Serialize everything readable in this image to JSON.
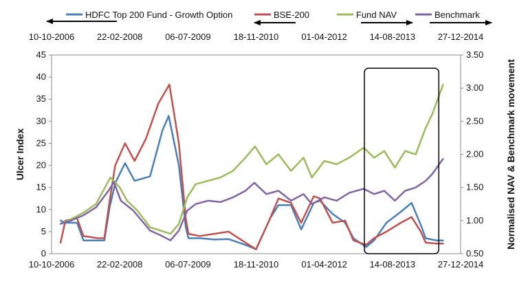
{
  "chart_data": {
    "type": "line",
    "title": "",
    "legend": {
      "placement": "top",
      "entries": [
        {
          "name": "HDFC Top 200 Fund - Growth Option",
          "color": "#4a7ebb"
        },
        {
          "name": "BSE-200",
          "color": "#c0504d"
        },
        {
          "name": "Fund NAV",
          "color": "#9bbb59"
        },
        {
          "name": "Benchmark",
          "color": "#8064a2"
        }
      ]
    },
    "x_axis": {
      "type": "date",
      "range": [
        "2006-10-10",
        "2014-12-27"
      ],
      "tick_labels": [
        "10-10-2006",
        "22-02-2008",
        "06-07-2009",
        "18-11-2010",
        "01-04-2012",
        "14-08-2013",
        "27-12-2014"
      ],
      "top_tick_labels": [
        "10-10-2006",
        "22-02-2008",
        "06-07-2009",
        "18-11-2010",
        "01-04-2012",
        "14-08-2013",
        "27-12-2014"
      ]
    },
    "y_axis": {
      "label": "Ulcer Index",
      "range": [
        0,
        45
      ],
      "tick_labels": [
        "0",
        "5",
        "10",
        "15",
        "20",
        "25",
        "30",
        "35",
        "40",
        "45"
      ]
    },
    "y2_axis": {
      "label": "Normalised NAV & Benchmark movement",
      "range": [
        0.5,
        3.5
      ],
      "tick_labels": [
        "0.50",
        "1.00",
        "1.50",
        "2.00",
        "2.50",
        "3.00",
        "3.50"
      ]
    },
    "grid": false,
    "annotations": {
      "highlight_box": {
        "x_from": "2013-01-20",
        "x_to": "2014-07-20",
        "y_from": 0,
        "y_to": 42
      },
      "arrows_pointing_to": {
        "HDFC Top 200 Fund - Growth Option": "left axis",
        "BSE-200": "left axis",
        "Fund NAV": "right axis",
        "Benchmark": "right axis"
      }
    },
    "series": [
      {
        "name": "HDFC Top 200 Fund - Growth Option",
        "axis": "left",
        "color": "#4a7ebb",
        "points": [
          [
            "2006-12-15",
            7.5
          ],
          [
            "2007-01-20",
            7.0
          ],
          [
            "2007-04-15",
            7.0
          ],
          [
            "2007-06-01",
            3.0
          ],
          [
            "2007-09-15",
            3.0
          ],
          [
            "2007-11-01",
            3.0
          ],
          [
            "2007-12-10",
            10.5
          ],
          [
            "2008-01-20",
            16.0
          ],
          [
            "2008-04-01",
            20.5
          ],
          [
            "2008-06-10",
            16.5
          ],
          [
            "2008-10-01",
            17.5
          ],
          [
            "2009-01-01",
            28.0
          ],
          [
            "2009-02-15",
            31.2
          ],
          [
            "2009-05-01",
            20.0
          ],
          [
            "2009-06-20",
            6.0
          ],
          [
            "2009-07-10",
            3.5
          ],
          [
            "2009-10-01",
            3.5
          ],
          [
            "2010-01-15",
            3.2
          ],
          [
            "2010-05-01",
            3.3
          ],
          [
            "2010-09-01",
            2.0
          ],
          [
            "2010-11-18",
            1.0
          ],
          [
            "2011-03-01",
            8.0
          ],
          [
            "2011-05-01",
            11.0
          ],
          [
            "2011-08-01",
            11.0
          ],
          [
            "2011-10-15",
            5.5
          ],
          [
            "2012-01-15",
            11.5
          ],
          [
            "2012-03-01",
            12.0
          ],
          [
            "2012-06-01",
            9.0
          ],
          [
            "2012-09-01",
            7.0
          ],
          [
            "2012-11-01",
            3.5
          ],
          [
            "2013-02-01",
            1.5
          ],
          [
            "2013-04-01",
            3.0
          ],
          [
            "2013-07-01",
            7.0
          ],
          [
            "2013-10-15",
            9.5
          ],
          [
            "2014-01-01",
            11.5
          ],
          [
            "2014-03-10",
            6.5
          ],
          [
            "2014-04-15",
            3.5
          ],
          [
            "2014-07-01",
            3.0
          ],
          [
            "2014-08-20",
            3.0
          ]
        ]
      },
      {
        "name": "BSE-200",
        "axis": "left",
        "color": "#c0504d",
        "points": [
          [
            "2006-12-15",
            2.5
          ],
          [
            "2007-01-20",
            7.5
          ],
          [
            "2007-04-15",
            8.0
          ],
          [
            "2007-06-01",
            4.0
          ],
          [
            "2007-09-15",
            3.5
          ],
          [
            "2007-11-01",
            3.5
          ],
          [
            "2007-12-10",
            12.0
          ],
          [
            "2008-01-20",
            20.0
          ],
          [
            "2008-04-01",
            25.0
          ],
          [
            "2008-06-10",
            21.0
          ],
          [
            "2008-09-01",
            26.0
          ],
          [
            "2008-12-01",
            34.0
          ],
          [
            "2009-02-20",
            38.3
          ],
          [
            "2009-05-01",
            25.0
          ],
          [
            "2009-06-20",
            8.0
          ],
          [
            "2009-07-10",
            4.5
          ],
          [
            "2009-10-01",
            4.0
          ],
          [
            "2010-01-15",
            4.5
          ],
          [
            "2010-05-01",
            5.0
          ],
          [
            "2010-09-01",
            2.5
          ],
          [
            "2010-11-18",
            1.0
          ],
          [
            "2011-03-01",
            8.0
          ],
          [
            "2011-05-01",
            12.5
          ],
          [
            "2011-08-01",
            11.5
          ],
          [
            "2011-10-15",
            7.0
          ],
          [
            "2012-01-15",
            13.0
          ],
          [
            "2012-03-01",
            12.5
          ],
          [
            "2012-06-01",
            7.0
          ],
          [
            "2012-09-01",
            7.5
          ],
          [
            "2012-11-01",
            3.0
          ],
          [
            "2013-02-01",
            2.0
          ],
          [
            "2013-04-01",
            3.5
          ],
          [
            "2013-07-01",
            5.0
          ],
          [
            "2013-10-15",
            7.0
          ],
          [
            "2014-01-01",
            8.3
          ],
          [
            "2014-03-10",
            5.0
          ],
          [
            "2014-04-15",
            2.5
          ],
          [
            "2014-07-01",
            2.3
          ],
          [
            "2014-08-20",
            2.3
          ]
        ]
      },
      {
        "name": "Fund NAV",
        "axis": "right",
        "color": "#9bbb59",
        "points": [
          [
            "2006-12-15",
            0.95
          ],
          [
            "2007-03-01",
            1.02
          ],
          [
            "2007-06-01",
            1.12
          ],
          [
            "2007-09-01",
            1.25
          ],
          [
            "2007-12-15",
            1.65
          ],
          [
            "2008-02-22",
            1.5
          ],
          [
            "2008-04-15",
            1.3
          ],
          [
            "2008-07-01",
            1.15
          ],
          [
            "2008-10-01",
            0.9
          ],
          [
            "2008-12-15",
            0.85
          ],
          [
            "2009-03-01",
            0.8
          ],
          [
            "2009-05-01",
            0.95
          ],
          [
            "2009-07-01",
            1.35
          ],
          [
            "2009-09-01",
            1.55
          ],
          [
            "2009-12-01",
            1.6
          ],
          [
            "2010-03-01",
            1.65
          ],
          [
            "2010-06-01",
            1.75
          ],
          [
            "2010-09-01",
            1.95
          ],
          [
            "2010-11-10",
            2.12
          ],
          [
            "2011-02-01",
            1.85
          ],
          [
            "2011-05-01",
            2.0
          ],
          [
            "2011-08-01",
            1.75
          ],
          [
            "2011-11-01",
            1.95
          ],
          [
            "2012-01-01",
            1.65
          ],
          [
            "2012-04-01",
            1.9
          ],
          [
            "2012-07-01",
            1.85
          ],
          [
            "2012-10-01",
            1.95
          ],
          [
            "2013-01-15",
            2.1
          ],
          [
            "2013-04-01",
            1.95
          ],
          [
            "2013-06-15",
            2.05
          ],
          [
            "2013-09-01",
            1.8
          ],
          [
            "2013-11-15",
            2.05
          ],
          [
            "2014-02-01",
            2.0
          ],
          [
            "2014-04-15",
            2.4
          ],
          [
            "2014-06-01",
            2.6
          ],
          [
            "2014-08-20",
            3.05
          ]
        ]
      },
      {
        "name": "Benchmark",
        "axis": "right",
        "color": "#8064a2",
        "points": [
          [
            "2006-12-15",
            0.95
          ],
          [
            "2007-03-01",
            1.0
          ],
          [
            "2007-06-01",
            1.08
          ],
          [
            "2007-09-01",
            1.2
          ],
          [
            "2007-12-01",
            1.45
          ],
          [
            "2008-01-10",
            1.58
          ],
          [
            "2008-03-01",
            1.3
          ],
          [
            "2008-06-01",
            1.15
          ],
          [
            "2008-10-01",
            0.85
          ],
          [
            "2008-12-15",
            0.78
          ],
          [
            "2009-03-01",
            0.7
          ],
          [
            "2009-05-01",
            0.85
          ],
          [
            "2009-07-01",
            1.15
          ],
          [
            "2009-09-01",
            1.25
          ],
          [
            "2009-12-01",
            1.3
          ],
          [
            "2010-03-01",
            1.28
          ],
          [
            "2010-06-01",
            1.35
          ],
          [
            "2010-09-01",
            1.45
          ],
          [
            "2010-11-05",
            1.57
          ],
          [
            "2011-02-01",
            1.4
          ],
          [
            "2011-05-01",
            1.45
          ],
          [
            "2011-08-01",
            1.3
          ],
          [
            "2011-11-01",
            1.4
          ],
          [
            "2012-01-01",
            1.25
          ],
          [
            "2012-04-01",
            1.35
          ],
          [
            "2012-07-01",
            1.3
          ],
          [
            "2012-10-01",
            1.42
          ],
          [
            "2013-01-15",
            1.48
          ],
          [
            "2013-04-01",
            1.4
          ],
          [
            "2013-06-15",
            1.45
          ],
          [
            "2013-09-01",
            1.3
          ],
          [
            "2013-11-15",
            1.45
          ],
          [
            "2014-02-01",
            1.5
          ],
          [
            "2014-04-15",
            1.6
          ],
          [
            "2014-06-01",
            1.7
          ],
          [
            "2014-08-20",
            1.93
          ]
        ]
      }
    ]
  }
}
